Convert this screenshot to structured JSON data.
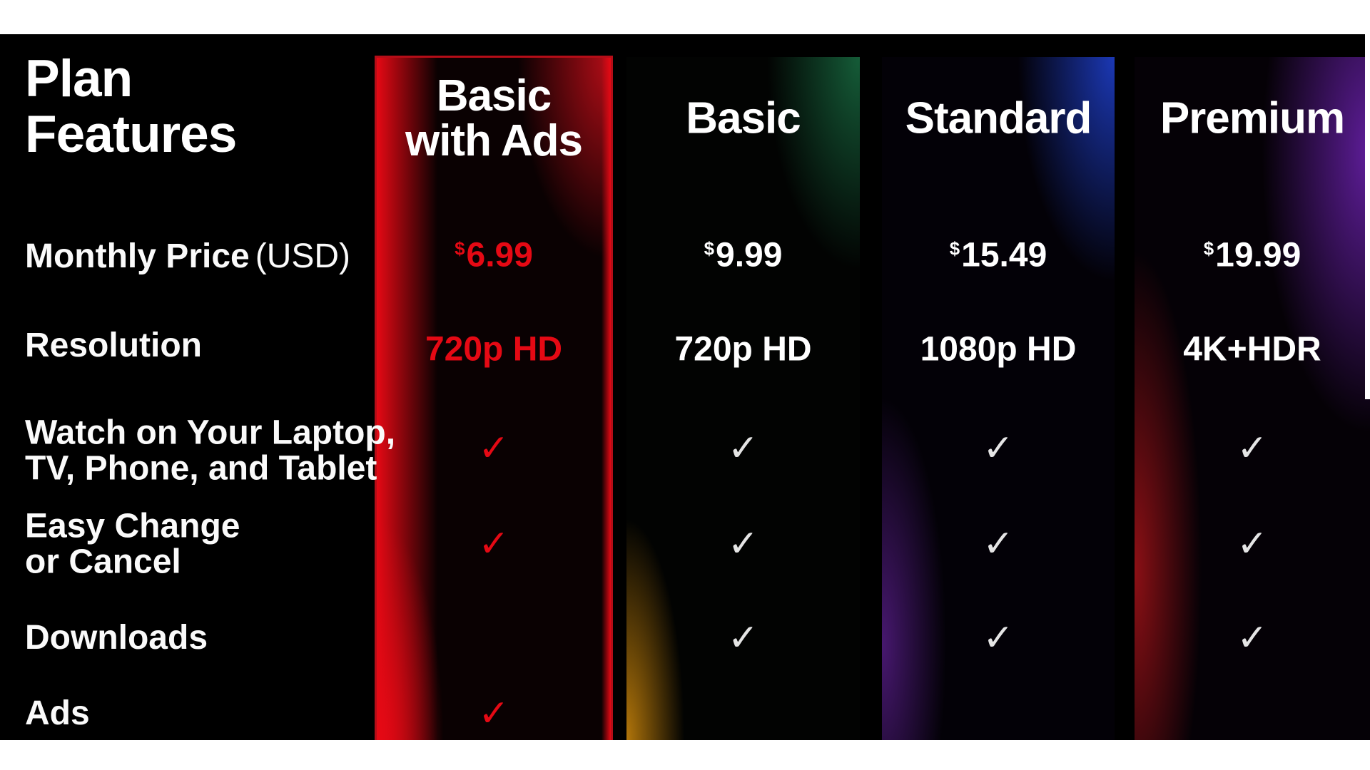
{
  "colors": {
    "accent": "#e50914",
    "text": "#ffffff",
    "check": "#e5e5e5",
    "glow-red": "#b50d17",
    "glow-green": "#155c38",
    "glow-amber": "#b1750a",
    "glow-blue": "#1b38b5",
    "glow-purple": "#47186f",
    "glow-violet": "#5e1d99",
    "glow-darkred": "#8c1015"
  },
  "glyphs": {
    "check": "✓"
  },
  "title": {
    "line1": "Plan",
    "line2": "Features"
  },
  "rows": {
    "monthly_price": {
      "bold": "Monthly Price",
      "light": "(USD)"
    },
    "resolution": "Resolution",
    "watch": {
      "line1": "Watch on Your Laptop,",
      "line2": "TV, Phone, and Tablet"
    },
    "easy": {
      "line1": "Easy Change",
      "line2": "or Cancel"
    },
    "downloads": "Downloads",
    "ads": "Ads"
  },
  "plans": [
    {
      "name": "Basic with Ads",
      "name_lines": {
        "line1": "Basic",
        "line2": "with Ads"
      },
      "highlighted": true,
      "currency": "$",
      "price": "6.99",
      "resolution": "720p HD",
      "features": {
        "watch_on_devices": true,
        "easy_change_or_cancel": true,
        "downloads": false,
        "ads": true
      }
    },
    {
      "name": "Basic",
      "highlighted": false,
      "currency": "$",
      "price": "9.99",
      "resolution": "720p HD",
      "features": {
        "watch_on_devices": true,
        "easy_change_or_cancel": true,
        "downloads": true,
        "ads": false
      }
    },
    {
      "name": "Standard",
      "highlighted": false,
      "currency": "$",
      "price": "15.49",
      "resolution": "1080p HD",
      "features": {
        "watch_on_devices": true,
        "easy_change_or_cancel": true,
        "downloads": true,
        "ads": false
      }
    },
    {
      "name": "Premium",
      "highlighted": false,
      "currency": "$",
      "price": "19.99",
      "resolution": "4K+HDR",
      "features": {
        "watch_on_devices": true,
        "easy_change_or_cancel": true,
        "downloads": true,
        "ads": false
      }
    }
  ],
  "chart_data": {
    "type": "table",
    "title": "Plan Features",
    "columns": [
      "Plan Features",
      "Basic with Ads",
      "Basic",
      "Standard",
      "Premium"
    ],
    "rows": [
      [
        "Monthly Price (USD)",
        "$6.99",
        "$9.99",
        "$15.49",
        "$19.99"
      ],
      [
        "Resolution",
        "720p HD",
        "720p HD",
        "1080p HD",
        "4K+HDR"
      ],
      [
        "Watch on Your Laptop, TV, Phone, and Tablet",
        "✓",
        "✓",
        "✓",
        "✓"
      ],
      [
        "Easy Change or Cancel",
        "✓",
        "✓",
        "✓",
        "✓"
      ],
      [
        "Downloads",
        "",
        "✓",
        "✓",
        "✓"
      ],
      [
        "Ads",
        "✓",
        "",
        "",
        ""
      ]
    ],
    "layout": {
      "highlighted_column": "Basic with Ads",
      "grid": false
    }
  }
}
